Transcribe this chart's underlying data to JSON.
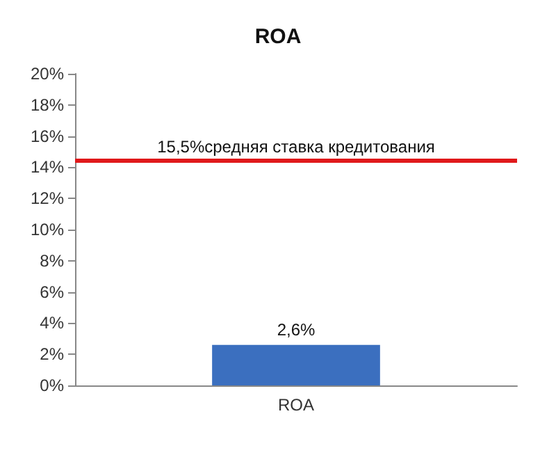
{
  "chart_data": {
    "type": "bar",
    "title": "ROA",
    "categories": [
      "ROA"
    ],
    "values": [
      2.6
    ],
    "color": "#3b6fbf",
    "value_labels": [
      "2,6%"
    ],
    "ylim": [
      0,
      20
    ],
    "yticks": [
      {
        "value": 0,
        "label": "0%"
      },
      {
        "value": 2,
        "label": "2%"
      },
      {
        "value": 4,
        "label": "4%"
      },
      {
        "value": 6,
        "label": "6%"
      },
      {
        "value": 8,
        "label": "8%"
      },
      {
        "value": 10,
        "label": "10%"
      },
      {
        "value": 12,
        "label": "12%"
      },
      {
        "value": 14,
        "label": "14%"
      },
      {
        "value": 16,
        "label": "16%"
      },
      {
        "value": 18,
        "label": "18%"
      },
      {
        "value": 20,
        "label": "20%"
      }
    ],
    "ref_lines": [
      {
        "axis": "y",
        "value": 14.4,
        "label": "15,5%средняя ставка кредитования",
        "color": "#e0191b"
      }
    ],
    "grid": false
  }
}
